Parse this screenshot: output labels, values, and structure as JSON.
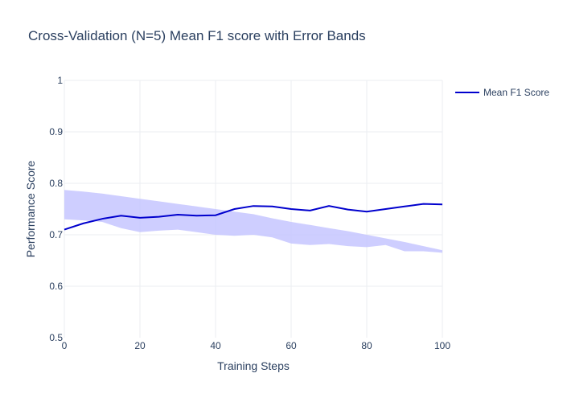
{
  "chart_data": {
    "type": "line",
    "title": "Cross-Validation (N=5) Mean F1 score with Error Bands",
    "xlabel": "Training Steps",
    "ylabel": "Performance Score",
    "xlim": [
      0,
      100
    ],
    "ylim": [
      0.5,
      1
    ],
    "x_ticks": [
      "0",
      "20",
      "40",
      "60",
      "80",
      "100"
    ],
    "y_ticks": [
      "0.5",
      "0.6",
      "0.7",
      "0.8",
      "0.9",
      "1"
    ],
    "legend_position": "top-right",
    "grid": true,
    "colors": {
      "line": "#0000cd",
      "band": "#c5c5ff",
      "text": "#2a3f5f"
    },
    "series": [
      {
        "name": "Mean F1 Score",
        "x": [
          0,
          5,
          10,
          15,
          20,
          25,
          30,
          35,
          40,
          45,
          50,
          55,
          60,
          65,
          70,
          75,
          80,
          85,
          90,
          95,
          100
        ],
        "y": [
          0.71,
          0.722,
          0.731,
          0.737,
          0.733,
          0.735,
          0.739,
          0.737,
          0.738,
          0.75,
          0.756,
          0.755,
          0.75,
          0.747,
          0.756,
          0.749,
          0.745,
          0.75,
          0.755,
          0.76,
          0.759
        ]
      }
    ],
    "band": {
      "x": [
        0,
        5,
        10,
        15,
        20,
        25,
        30,
        35,
        40,
        45,
        50,
        55,
        60,
        65,
        70,
        75,
        80,
        85,
        90,
        95,
        100
      ],
      "upper": [
        0.787,
        0.784,
        0.78,
        0.775,
        0.77,
        0.765,
        0.76,
        0.755,
        0.75,
        0.745,
        0.74,
        0.732,
        0.725,
        0.719,
        0.713,
        0.707,
        0.7,
        0.693,
        0.686,
        0.678,
        0.67
      ],
      "lower": [
        0.73,
        0.728,
        0.725,
        0.713,
        0.705,
        0.708,
        0.71,
        0.705,
        0.7,
        0.698,
        0.7,
        0.695,
        0.683,
        0.68,
        0.682,
        0.678,
        0.676,
        0.68,
        0.668,
        0.668,
        0.665
      ]
    }
  }
}
